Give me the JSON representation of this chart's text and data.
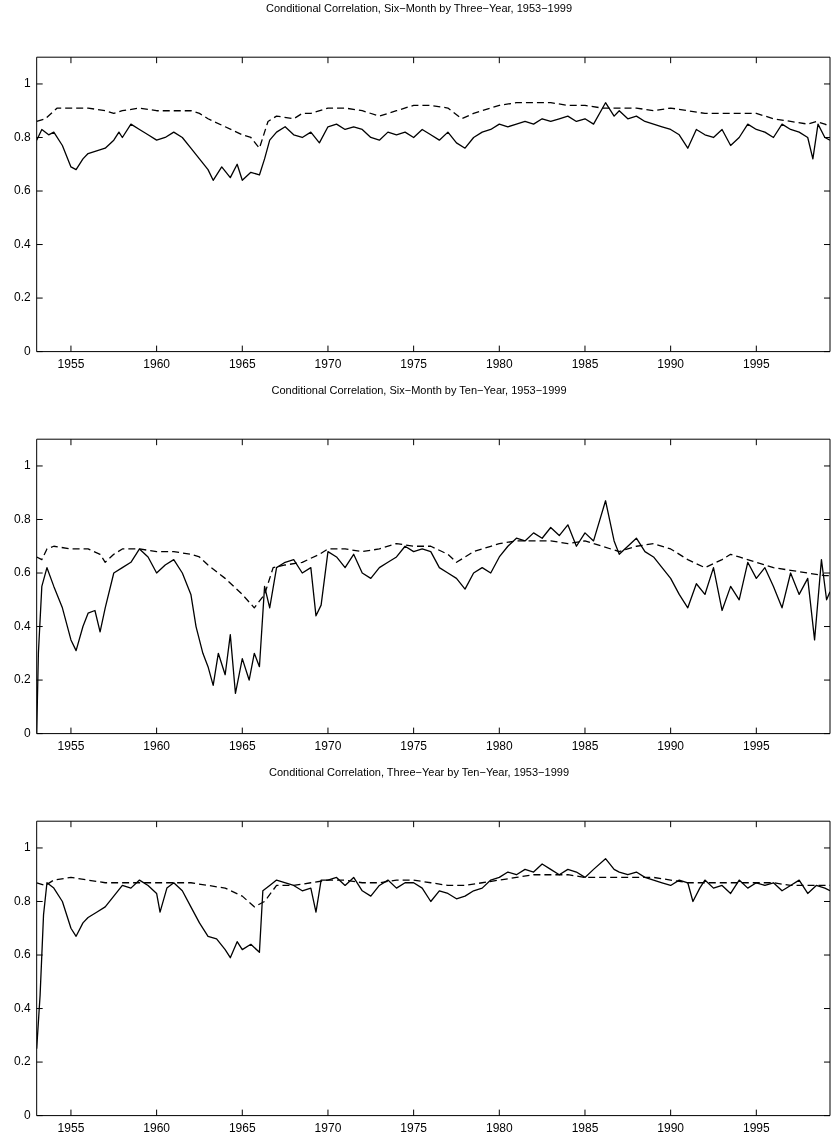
{
  "chart_data": [
    {
      "type": "line",
      "title": "Conditional Correlation, Six−Month by Three−Year, 1953−1999",
      "xlim": [
        1953,
        1999.3
      ],
      "xticks": [
        1955,
        1960,
        1965,
        1970,
        1975,
        1980,
        1985,
        1990,
        1995
      ],
      "ylim": [
        0,
        1.1
      ],
      "yticks": [
        0,
        0.2,
        0.4,
        0.6,
        0.8,
        1
      ],
      "grid": false,
      "legend": false,
      "marker": "none",
      "series": [
        {
          "color": "#000000",
          "line_style": "solid",
          "x": [
            1953.0,
            1953.3,
            1953.7,
            1954.0,
            1954.5,
            1955.0,
            1955.3,
            1955.7,
            1956,
            1956.5,
            1957,
            1957.5,
            1957.8,
            1958,
            1958.5,
            1959,
            1959.5,
            1960,
            1960.5,
            1961,
            1961.5,
            1962,
            1962.5,
            1963,
            1963.3,
            1963.8,
            1964.3,
            1964.7,
            1965,
            1965.5,
            1966,
            1966.3,
            1966.6,
            1967,
            1967.5,
            1968,
            1968.5,
            1969,
            1969.5,
            1970,
            1970.5,
            1971,
            1971.5,
            1972,
            1972.5,
            1973,
            1973.5,
            1974,
            1974.5,
            1975,
            1975.5,
            1976,
            1976.5,
            1977,
            1977.5,
            1978,
            1978.5,
            1979,
            1979.5,
            1980,
            1980.5,
            1981,
            1981.5,
            1982,
            1982.5,
            1983,
            1983.5,
            1984,
            1984.5,
            1985,
            1985.5,
            1986.2,
            1986.7,
            1987,
            1987.5,
            1988,
            1988.5,
            1989,
            1989.5,
            1990,
            1990.5,
            1991,
            1991.5,
            1992,
            1992.5,
            1993,
            1993.5,
            1994,
            1994.5,
            1995,
            1995.5,
            1996,
            1996.5,
            1997,
            1997.5,
            1998,
            1998.3,
            1998.6,
            1999,
            1999.3
          ],
          "values": [
            0.79,
            0.83,
            0.81,
            0.82,
            0.77,
            0.69,
            0.68,
            0.72,
            0.74,
            0.75,
            0.76,
            0.79,
            0.82,
            0.8,
            0.85,
            0.83,
            0.81,
            0.79,
            0.8,
            0.82,
            0.8,
            0.76,
            0.72,
            0.68,
            0.64,
            0.69,
            0.65,
            0.7,
            0.64,
            0.67,
            0.66,
            0.72,
            0.79,
            0.82,
            0.84,
            0.81,
            0.8,
            0.82,
            0.78,
            0.84,
            0.85,
            0.83,
            0.84,
            0.83,
            0.8,
            0.79,
            0.82,
            0.81,
            0.82,
            0.8,
            0.83,
            0.81,
            0.79,
            0.82,
            0.78,
            0.76,
            0.8,
            0.82,
            0.83,
            0.85,
            0.84,
            0.85,
            0.86,
            0.85,
            0.87,
            0.86,
            0.87,
            0.88,
            0.86,
            0.87,
            0.85,
            0.93,
            0.88,
            0.9,
            0.87,
            0.88,
            0.86,
            0.85,
            0.84,
            0.83,
            0.81,
            0.76,
            0.83,
            0.81,
            0.8,
            0.83,
            0.77,
            0.8,
            0.85,
            0.83,
            0.82,
            0.8,
            0.85,
            0.83,
            0.82,
            0.8,
            0.72,
            0.85,
            0.8,
            0.79
          ]
        },
        {
          "color": "#000000",
          "line_style": "dashed",
          "x": [
            1953,
            1953.5,
            1954.2,
            1955,
            1956,
            1957,
            1957.5,
            1958,
            1959,
            1960,
            1961,
            1962,
            1962.5,
            1963,
            1964,
            1965,
            1965.5,
            1966,
            1966.5,
            1967,
            1968,
            1968.5,
            1969,
            1970,
            1971,
            1972,
            1973,
            1974,
            1975,
            1976,
            1977,
            1977.8,
            1978.5,
            1979,
            1980,
            1981,
            1982,
            1983,
            1984,
            1985,
            1986,
            1987,
            1988,
            1989,
            1990,
            1991,
            1992,
            1993,
            1994,
            1995,
            1996,
            1997,
            1998,
            1998.5,
            1999,
            1999.3
          ],
          "values": [
            0.86,
            0.87,
            0.91,
            0.91,
            0.91,
            0.9,
            0.89,
            0.9,
            0.91,
            0.9,
            0.9,
            0.9,
            0.89,
            0.87,
            0.84,
            0.81,
            0.8,
            0.76,
            0.86,
            0.88,
            0.87,
            0.89,
            0.89,
            0.91,
            0.91,
            0.9,
            0.88,
            0.9,
            0.92,
            0.92,
            0.91,
            0.87,
            0.89,
            0.9,
            0.92,
            0.93,
            0.93,
            0.93,
            0.92,
            0.92,
            0.91,
            0.91,
            0.91,
            0.9,
            0.91,
            0.9,
            0.89,
            0.89,
            0.89,
            0.89,
            0.87,
            0.86,
            0.85,
            0.86,
            0.85,
            0.84
          ]
        }
      ]
    },
    {
      "type": "line",
      "title": "Conditional Correlation, Six−Month by Ten−Year, 1953−1999",
      "xlim": [
        1953,
        1999.3
      ],
      "xticks": [
        1955,
        1960,
        1965,
        1970,
        1975,
        1980,
        1985,
        1990,
        1995
      ],
      "ylim": [
        0,
        1.1
      ],
      "yticks": [
        0,
        0.2,
        0.4,
        0.6,
        0.8,
        1
      ],
      "grid": false,
      "legend": false,
      "marker": "none",
      "series": [
        {
          "color": "#000000",
          "line_style": "solid",
          "x": [
            1953.0,
            1953.1,
            1953.3,
            1953.6,
            1954,
            1954.5,
            1955,
            1955.3,
            1955.7,
            1956,
            1956.4,
            1956.7,
            1957,
            1957.5,
            1958,
            1958.5,
            1959,
            1959.5,
            1960,
            1960.5,
            1961,
            1961.5,
            1962,
            1962.3,
            1962.7,
            1963,
            1963.3,
            1963.6,
            1964,
            1964.3,
            1964.6,
            1965,
            1965.4,
            1965.7,
            1966,
            1966.3,
            1966.6,
            1967,
            1967.5,
            1968,
            1968.5,
            1969,
            1969.3,
            1969.6,
            1970,
            1970.5,
            1971,
            1971.5,
            1972,
            1972.5,
            1973,
            1973.5,
            1974,
            1974.5,
            1975,
            1975.5,
            1976,
            1976.5,
            1977,
            1977.5,
            1978,
            1978.5,
            1979,
            1979.5,
            1980,
            1980.5,
            1981,
            1981.5,
            1982,
            1982.5,
            1983,
            1983.5,
            1984,
            1984.5,
            1985,
            1985.5,
            1986.2,
            1986.7,
            1987,
            1987.5,
            1988,
            1988.5,
            1989,
            1989.5,
            1990,
            1990.5,
            1991,
            1991.5,
            1992,
            1992.5,
            1993,
            1993.5,
            1994,
            1994.5,
            1995,
            1995.5,
            1996,
            1996.5,
            1997,
            1997.5,
            1998,
            1998.4,
            1998.8,
            1999.1,
            1999.3
          ],
          "values": [
            0.0,
            0.3,
            0.55,
            0.62,
            0.55,
            0.47,
            0.35,
            0.31,
            0.4,
            0.45,
            0.46,
            0.38,
            0.47,
            0.6,
            0.62,
            0.64,
            0.69,
            0.66,
            0.6,
            0.63,
            0.65,
            0.6,
            0.52,
            0.4,
            0.3,
            0.25,
            0.18,
            0.3,
            0.22,
            0.37,
            0.15,
            0.28,
            0.2,
            0.3,
            0.25,
            0.55,
            0.47,
            0.62,
            0.64,
            0.65,
            0.6,
            0.62,
            0.44,
            0.48,
            0.68,
            0.66,
            0.62,
            0.67,
            0.6,
            0.58,
            0.62,
            0.64,
            0.66,
            0.7,
            0.68,
            0.69,
            0.68,
            0.62,
            0.6,
            0.58,
            0.54,
            0.6,
            0.62,
            0.6,
            0.66,
            0.7,
            0.73,
            0.72,
            0.75,
            0.73,
            0.77,
            0.74,
            0.78,
            0.7,
            0.75,
            0.72,
            0.87,
            0.72,
            0.67,
            0.7,
            0.73,
            0.68,
            0.66,
            0.62,
            0.58,
            0.52,
            0.47,
            0.56,
            0.52,
            0.62,
            0.46,
            0.55,
            0.5,
            0.64,
            0.58,
            0.62,
            0.55,
            0.47,
            0.6,
            0.52,
            0.58,
            0.35,
            0.65,
            0.5,
            0.53
          ]
        },
        {
          "color": "#000000",
          "line_style": "dashed",
          "x": [
            1953,
            1953.3,
            1953.6,
            1954,
            1955,
            1956,
            1956.7,
            1957,
            1957.5,
            1958,
            1959,
            1960,
            1961,
            1962,
            1962.5,
            1963,
            1964,
            1965,
            1965.7,
            1966.3,
            1966.8,
            1967.5,
            1968.5,
            1969.5,
            1970,
            1971,
            1972,
            1973,
            1974,
            1975,
            1976,
            1977,
            1977.5,
            1978.5,
            1979.5,
            1980,
            1981,
            1982,
            1983,
            1984,
            1985,
            1986,
            1987,
            1988,
            1989,
            1990,
            1991,
            1992,
            1993,
            1993.5,
            1994,
            1995,
            1996,
            1997,
            1998,
            1999,
            1999.3
          ],
          "values": [
            0.66,
            0.65,
            0.69,
            0.7,
            0.69,
            0.69,
            0.67,
            0.64,
            0.67,
            0.69,
            0.69,
            0.68,
            0.68,
            0.67,
            0.66,
            0.63,
            0.58,
            0.52,
            0.47,
            0.52,
            0.62,
            0.63,
            0.64,
            0.67,
            0.69,
            0.69,
            0.68,
            0.69,
            0.71,
            0.7,
            0.7,
            0.67,
            0.64,
            0.68,
            0.7,
            0.71,
            0.72,
            0.72,
            0.72,
            0.71,
            0.72,
            0.7,
            0.68,
            0.7,
            0.71,
            0.69,
            0.65,
            0.62,
            0.65,
            0.67,
            0.66,
            0.64,
            0.62,
            0.61,
            0.6,
            0.59,
            0.59
          ]
        }
      ]
    },
    {
      "type": "line",
      "title": "Conditional Correlation, Three−Year by Ten−Year, 1953−1999",
      "xlim": [
        1953,
        1999.3
      ],
      "xticks": [
        1955,
        1960,
        1965,
        1970,
        1975,
        1980,
        1985,
        1990,
        1995
      ],
      "ylim": [
        0,
        1.1
      ],
      "yticks": [
        0,
        0.2,
        0.4,
        0.6,
        0.8,
        1
      ],
      "grid": false,
      "legend": false,
      "marker": "none",
      "series": [
        {
          "color": "#000000",
          "line_style": "solid",
          "x": [
            1953,
            1953.2,
            1953.4,
            1953.6,
            1954,
            1954.5,
            1955,
            1955.3,
            1955.7,
            1956,
            1956.5,
            1957,
            1957.5,
            1958,
            1958.5,
            1959,
            1959.5,
            1960,
            1960.2,
            1960.6,
            1961,
            1961.5,
            1962,
            1962.5,
            1963,
            1963.5,
            1964,
            1964.3,
            1964.7,
            1965,
            1965.5,
            1966,
            1966.2,
            1966.6,
            1967,
            1968,
            1968.5,
            1969,
            1969.3,
            1969.6,
            1970,
            1970.5,
            1971,
            1971.5,
            1972,
            1972.5,
            1973,
            1973.5,
            1974,
            1974.5,
            1975,
            1975.5,
            1976,
            1976.5,
            1977,
            1977.5,
            1978,
            1978.5,
            1979,
            1979.5,
            1980,
            1980.5,
            1981,
            1981.5,
            1982,
            1982.5,
            1983,
            1983.5,
            1984,
            1984.5,
            1985,
            1985.5,
            1986.2,
            1986.7,
            1987,
            1987.5,
            1988,
            1988.5,
            1989,
            1989.5,
            1990,
            1990.5,
            1991,
            1991.3,
            1991.7,
            1992,
            1992.5,
            1993,
            1993.5,
            1994,
            1994.5,
            1995,
            1995.5,
            1996,
            1996.5,
            1997,
            1997.5,
            1998,
            1998.5,
            1999,
            1999.3
          ],
          "values": [
            0.25,
            0.45,
            0.75,
            0.87,
            0.85,
            0.8,
            0.7,
            0.67,
            0.72,
            0.74,
            0.76,
            0.78,
            0.82,
            0.86,
            0.85,
            0.88,
            0.86,
            0.83,
            0.76,
            0.85,
            0.87,
            0.84,
            0.78,
            0.72,
            0.67,
            0.66,
            0.62,
            0.59,
            0.65,
            0.62,
            0.64,
            0.61,
            0.84,
            0.86,
            0.88,
            0.86,
            0.84,
            0.85,
            0.76,
            0.88,
            0.88,
            0.89,
            0.86,
            0.89,
            0.84,
            0.82,
            0.86,
            0.88,
            0.85,
            0.87,
            0.87,
            0.85,
            0.8,
            0.84,
            0.83,
            0.81,
            0.82,
            0.84,
            0.85,
            0.88,
            0.89,
            0.91,
            0.9,
            0.92,
            0.91,
            0.94,
            0.92,
            0.9,
            0.92,
            0.91,
            0.89,
            0.92,
            0.96,
            0.92,
            0.91,
            0.9,
            0.91,
            0.89,
            0.88,
            0.87,
            0.86,
            0.88,
            0.87,
            0.8,
            0.85,
            0.88,
            0.85,
            0.86,
            0.83,
            0.88,
            0.85,
            0.87,
            0.86,
            0.87,
            0.84,
            0.86,
            0.88,
            0.83,
            0.86,
            0.85,
            0.84
          ]
        },
        {
          "color": "#000000",
          "line_style": "dashed",
          "x": [
            1953,
            1953.5,
            1954,
            1955,
            1956,
            1957,
            1958,
            1959,
            1960,
            1961,
            1962,
            1963,
            1964,
            1965,
            1965.7,
            1966.3,
            1967,
            1968,
            1969,
            1970,
            1971,
            1972,
            1973,
            1974,
            1975,
            1976,
            1977,
            1978,
            1979,
            1980,
            1981,
            1982,
            1983,
            1984,
            1985,
            1986,
            1987,
            1988,
            1989,
            1990,
            1991,
            1992,
            1993,
            1994,
            1995,
            1996,
            1997,
            1998,
            1999,
            1999.3
          ],
          "values": [
            0.87,
            0.86,
            0.88,
            0.89,
            0.88,
            0.87,
            0.87,
            0.87,
            0.87,
            0.87,
            0.87,
            0.86,
            0.85,
            0.82,
            0.78,
            0.8,
            0.86,
            0.86,
            0.87,
            0.88,
            0.88,
            0.87,
            0.87,
            0.88,
            0.88,
            0.87,
            0.86,
            0.86,
            0.87,
            0.88,
            0.89,
            0.9,
            0.9,
            0.9,
            0.89,
            0.89,
            0.89,
            0.89,
            0.89,
            0.88,
            0.87,
            0.87,
            0.87,
            0.87,
            0.87,
            0.87,
            0.86,
            0.86,
            0.86,
            0.86
          ]
        }
      ]
    }
  ]
}
